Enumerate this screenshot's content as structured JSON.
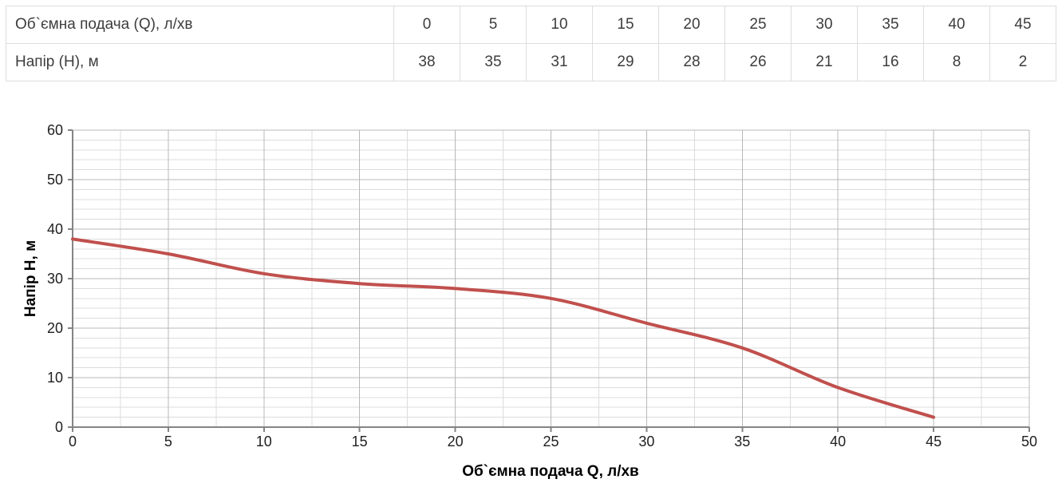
{
  "table": {
    "rows": [
      {
        "label": "Об`ємна подача (Q), л/хв",
        "values": [
          "0",
          "5",
          "10",
          "15",
          "20",
          "25",
          "30",
          "35",
          "40",
          "45"
        ]
      },
      {
        "label": "Напір (Н), м",
        "values": [
          "38",
          "35",
          "31",
          "29",
          "28",
          "26",
          "21",
          "16",
          "8",
          "2"
        ]
      }
    ]
  },
  "chart_data": {
    "type": "line",
    "x": [
      0,
      5,
      10,
      15,
      20,
      25,
      30,
      35,
      40,
      45
    ],
    "y": [
      38,
      35,
      31,
      29,
      28,
      26,
      21,
      16,
      8,
      2
    ],
    "xlabel": "Об`ємна подача Q, л/хв",
    "ylabel": "Напір Н, м",
    "xlim": [
      0,
      50
    ],
    "ylim": [
      0,
      60
    ],
    "x_ticks": [
      0,
      5,
      10,
      15,
      20,
      25,
      30,
      35,
      40,
      45,
      50
    ],
    "y_ticks": [
      0,
      10,
      20,
      30,
      40,
      50,
      60
    ],
    "x_major_step": 5,
    "x_minor_step": 2.5,
    "y_major_step": 10,
    "y_minor_step": 2,
    "grid": "major+minor",
    "legend": "none",
    "smooth": true,
    "line_color": "#C0504D"
  },
  "colors": {
    "background": "#ffffff",
    "table_border": "#dddddd",
    "table_text": "#3d3d3d",
    "grid_minor": "#dcdcdc",
    "grid_major": "#b8b8b8",
    "axis": "#848484",
    "chart_text": "#1f1f1f",
    "line": "#C0504D"
  }
}
